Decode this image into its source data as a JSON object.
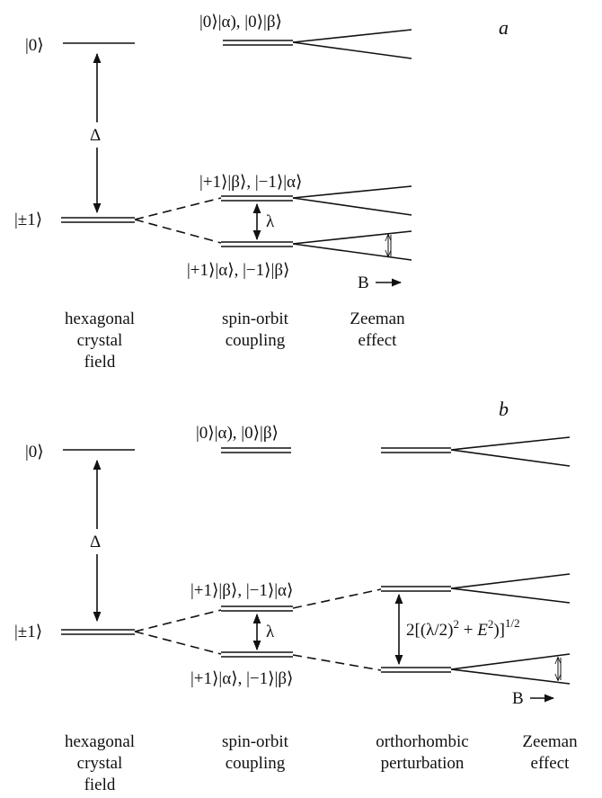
{
  "panel_a": {
    "letter": "a",
    "level_0": "|0⟩",
    "level_pm1": "|±1⟩",
    "delta": "Δ",
    "lambda": "λ",
    "so_top_state": "|0⟩|α), |0⟩|β⟩",
    "so_upper_state": "|+1⟩|β⟩, |−1⟩|α⟩",
    "so_lower_state": "|+1⟩|α⟩, |−1⟩|β⟩",
    "field_label": "B",
    "captions": {
      "crystal_field": [
        "hexagonal",
        "crystal",
        "field"
      ],
      "spin_orbit": [
        "spin-orbit",
        "coupling"
      ],
      "zeeman": [
        "Zeeman",
        "effect"
      ]
    }
  },
  "panel_b": {
    "letter": "b",
    "level_0": "|0⟩",
    "level_pm1": "|±1⟩",
    "delta": "Δ",
    "lambda": "λ",
    "so_top_state": "|0⟩|α), |0⟩|β⟩",
    "so_upper_state": "|+1⟩|β⟩, |−1⟩|α⟩",
    "so_lower_state": "|+1⟩|α⟩, |−1⟩|β⟩",
    "splitting_prefix": "2[(λ/2)",
    "splitting_exp2": "2",
    "splitting_mid": " + ",
    "splitting_E": "E",
    "splitting_close": ")]",
    "splitting_exp_half": "1/2",
    "field_label": "B",
    "captions": {
      "crystal_field": [
        "hexagonal",
        "crystal",
        "field"
      ],
      "spin_orbit": [
        "spin-orbit",
        "coupling"
      ],
      "orthorhombic": [
        "orthorhombic",
        "perturbation"
      ],
      "zeeman": [
        "Zeeman",
        "effect"
      ]
    }
  }
}
